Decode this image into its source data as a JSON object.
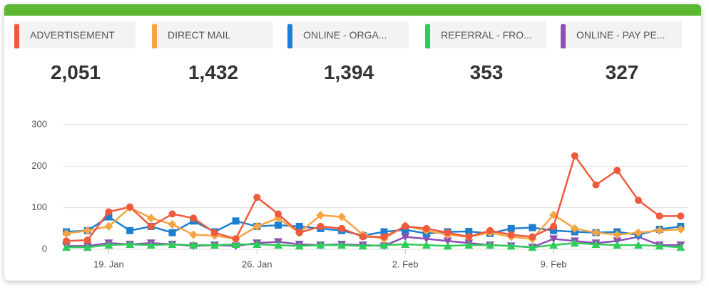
{
  "tiles": [
    {
      "label": "ADVERTISEMENT",
      "value": "2,051",
      "color": "#f05a3c"
    },
    {
      "label": "DIRECT MAIL",
      "value": "1,432",
      "color": "#f7a443"
    },
    {
      "label": "ONLINE - ORGA...",
      "value": "1,394",
      "color": "#1e7fd0"
    },
    {
      "label": "REFERRAL - FRO...",
      "value": "353",
      "color": "#2ecc59"
    },
    {
      "label": "ONLINE - PAY PE...",
      "value": "327",
      "color": "#8e4fb5"
    }
  ],
  "chart_data": {
    "type": "line",
    "categories": [
      null,
      null,
      "19. Jan",
      null,
      null,
      null,
      null,
      null,
      null,
      "26. Jan",
      null,
      null,
      null,
      null,
      null,
      null,
      "2. Feb",
      null,
      null,
      null,
      null,
      null,
      null,
      "9. Feb",
      null,
      null,
      null,
      null,
      null,
      null
    ],
    "series": [
      {
        "name": "ADVERTISEMENT",
        "color": "#f05a3c",
        "marker": "circle",
        "values": [
          20,
          22,
          90,
          102,
          55,
          85,
          75,
          40,
          25,
          125,
          85,
          40,
          55,
          50,
          30,
          30,
          55,
          50,
          40,
          30,
          45,
          35,
          30,
          55,
          225,
          155,
          190,
          118,
          80,
          80
        ]
      },
      {
        "name": "DIRECT MAIL",
        "color": "#f7a443",
        "marker": "diamond",
        "values": [
          38,
          45,
          55,
          100,
          75,
          60,
          35,
          33,
          25,
          55,
          75,
          40,
          82,
          78,
          35,
          25,
          57,
          45,
          35,
          30,
          40,
          30,
          25,
          83,
          50,
          40,
          35,
          40,
          45,
          48
        ]
      },
      {
        "name": "ONLINE - ORGA...",
        "color": "#1e7fd0",
        "marker": "square",
        "values": [
          42,
          45,
          78,
          45,
          55,
          40,
          68,
          42,
          68,
          55,
          58,
          55,
          50,
          45,
          33,
          42,
          47,
          38,
          42,
          43,
          38,
          50,
          52,
          45,
          42,
          40,
          42,
          35,
          48,
          55
        ]
      },
      {
        "name": "REFERRAL - FRO...",
        "color": "#2ecc59",
        "marker": "triangle",
        "values": [
          5,
          5,
          10,
          12,
          10,
          12,
          10,
          10,
          12,
          12,
          10,
          8,
          10,
          10,
          8,
          10,
          12,
          10,
          8,
          10,
          10,
          8,
          5,
          10,
          15,
          12,
          10,
          10,
          8,
          5
        ]
      },
      {
        "name": "ONLINE - PAY PE...",
        "color": "#8e4fb5",
        "marker": "triangle-down",
        "values": [
          8,
          8,
          15,
          12,
          15,
          12,
          8,
          10,
          8,
          15,
          18,
          12,
          10,
          12,
          10,
          8,
          30,
          25,
          20,
          15,
          10,
          8,
          5,
          25,
          20,
          15,
          20,
          30,
          10,
          10
        ]
      }
    ],
    "ylim": [
      0,
      300
    ],
    "yticks": [
      0,
      100,
      200,
      300
    ],
    "grid": true
  }
}
